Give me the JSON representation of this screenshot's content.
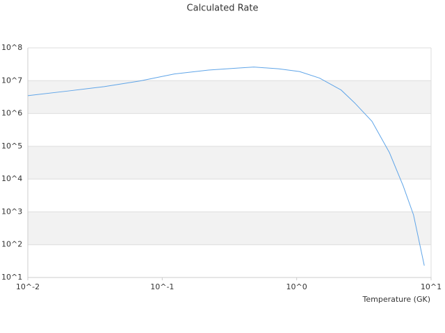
{
  "chart_data": {
    "type": "line",
    "title": "Calculated Rate",
    "x_label": "Temperature (GK)",
    "x": [
      0.01,
      0.0204,
      0.037,
      0.068,
      0.123,
      0.221,
      0.356,
      0.48,
      0.73,
      1.05,
      1.48,
      2.14,
      2.7,
      3.63,
      4.9,
      6.2,
      7.4,
      8.9
    ],
    "series": [
      {
        "name": "Calculated Rate",
        "color": "#5ea4e8",
        "values": [
          3500000,
          4900000,
          6600000,
          9800000,
          16000000,
          21000000,
          24000000,
          26000000,
          23000000,
          19000000,
          12000000,
          5200000,
          2100000,
          580000,
          64000,
          6200,
          810,
          23
        ]
      }
    ],
    "x_log": true,
    "y_log": true,
    "xlim": [
      0.01,
      10
    ],
    "ylim": [
      10,
      100000000
    ],
    "xticks": [
      {
        "value": 0.01,
        "label": "10^-2"
      },
      {
        "value": 0.1,
        "label": "10^-1"
      },
      {
        "value": 1,
        "label": "10^0"
      },
      {
        "value": 10,
        "label": "10^1"
      }
    ],
    "yticks": [
      {
        "value": 10,
        "label": "10^1"
      },
      {
        "value": 100,
        "label": "10^2"
      },
      {
        "value": 1000,
        "label": "10^3"
      },
      {
        "value": 10000,
        "label": "10^4"
      },
      {
        "value": 100000,
        "label": "10^5"
      },
      {
        "value": 1000000,
        "label": "10^6"
      },
      {
        "value": 10000000,
        "label": "10^7"
      },
      {
        "value": 100000000,
        "label": "10^8"
      }
    ],
    "grid": true
  }
}
